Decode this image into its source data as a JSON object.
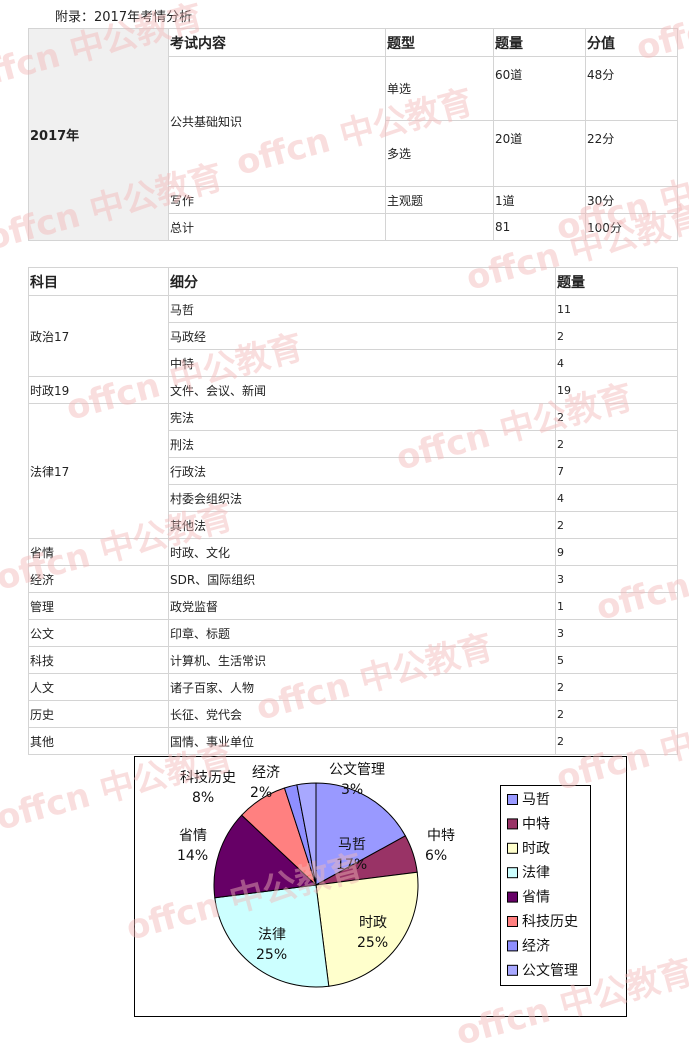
{
  "title": "附录：2017年考情分析",
  "watermark": "offcn 中公教育",
  "table1": {
    "year": "2017年",
    "header": [
      "考试内容",
      "题型",
      "题量",
      "分值"
    ],
    "rows": [
      {
        "content": "公共基础知识",
        "types": [
          {
            "type": "单选",
            "count": "60道",
            "score": "48分"
          },
          {
            "type": "多选",
            "count": "20道",
            "score": "22分"
          }
        ]
      },
      {
        "content": "写作",
        "types": [
          {
            "type": "主观题",
            "count": "1道",
            "score": "30分"
          }
        ]
      },
      {
        "content": "总计",
        "total_count": 81,
        "total_score": "100分"
      }
    ]
  },
  "table2": {
    "header": [
      "科目",
      "细分",
      "题量"
    ],
    "groups": [
      {
        "subject": "政治17",
        "items": [
          {
            "name": "马哲",
            "count": 11
          },
          {
            "name": "马政经",
            "count": 2
          },
          {
            "name": "中特",
            "count": 4
          }
        ]
      },
      {
        "subject": "时政19",
        "items": [
          {
            "name": "文件、会议、新闻",
            "count": 19
          }
        ]
      },
      {
        "subject": "法律17",
        "items": [
          {
            "name": "宪法",
            "count": 2
          },
          {
            "name": "刑法",
            "count": 2
          },
          {
            "name": "行政法",
            "count": 7
          },
          {
            "name": "村委会组织法",
            "count": 4
          },
          {
            "name": "其他法",
            "count": 2
          }
        ]
      },
      {
        "subject": "省情",
        "items": [
          {
            "name": "时政、文化",
            "count": 9
          }
        ]
      },
      {
        "subject": "经济",
        "items": [
          {
            "name": "SDR、国际组织",
            "count": 3
          }
        ]
      },
      {
        "subject": "管理",
        "items": [
          {
            "name": "政党监督",
            "count": 1
          }
        ]
      },
      {
        "subject": "公文",
        "items": [
          {
            "name": "印章、标题",
            "count": 3
          }
        ]
      },
      {
        "subject": "科技",
        "items": [
          {
            "name": "计算机、生活常识",
            "count": 5
          }
        ]
      },
      {
        "subject": "人文",
        "items": [
          {
            "name": "诸子百家、人物",
            "count": 2
          }
        ]
      },
      {
        "subject": "历史",
        "items": [
          {
            "name": "长征、党代会",
            "count": 2
          }
        ]
      },
      {
        "subject": "其他",
        "items": [
          {
            "name": "国情、事业单位",
            "count": 2
          }
        ]
      }
    ]
  },
  "chart_data": {
    "type": "pie",
    "categories": [
      "马哲",
      "中特",
      "时政",
      "法律",
      "省情",
      "科技历史",
      "经济",
      "公文管理"
    ],
    "values": [
      17,
      6,
      25,
      25,
      14,
      8,
      2,
      3
    ],
    "value_labels": [
      "17%",
      "6%",
      "25%",
      "25%",
      "14%",
      "8%",
      "2%",
      "3%"
    ],
    "colors": [
      "#9999ff",
      "#993366",
      "#ffffcc",
      "#ccffff",
      "#660066",
      "#ff8080",
      "#8f8fff",
      "#a8a8ff"
    ],
    "legend": "right"
  }
}
